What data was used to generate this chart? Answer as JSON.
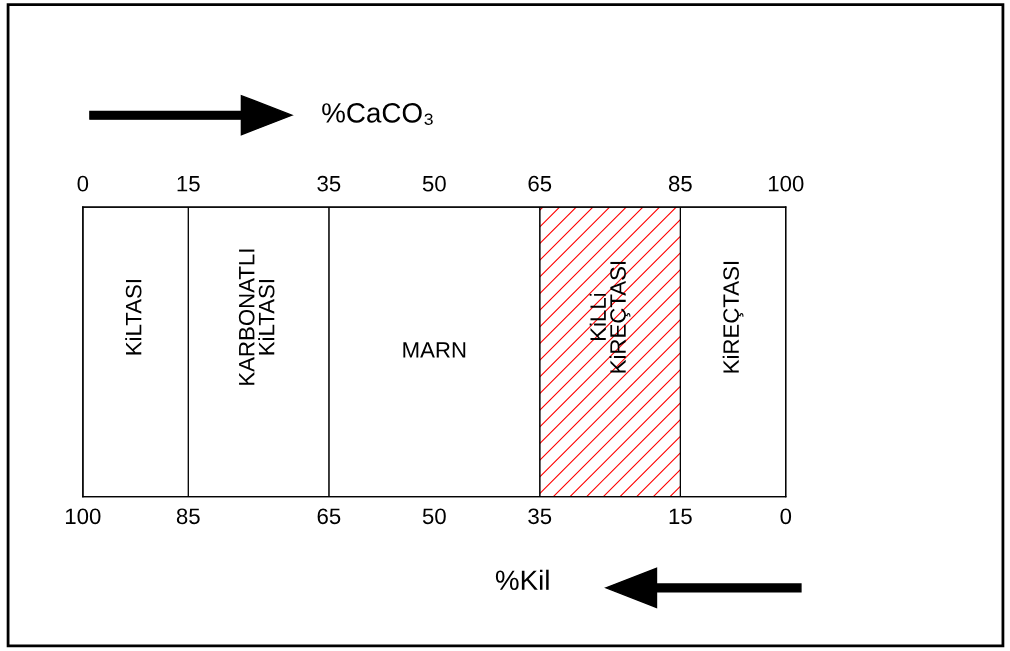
{
  "chart_data": {
    "type": "bar",
    "orientation": "horizontal",
    "stacked": true,
    "xlabel": "%Kil",
    "x2label": "%CaCO₃",
    "categories": [
      null
    ],
    "xlim": [
      100,
      0
    ],
    "xticks": [
      100,
      85,
      65,
      50,
      35,
      15,
      0
    ],
    "x2lim": [
      0,
      100
    ],
    "x2ticks": [
      0,
      15,
      35,
      50,
      65,
      85,
      100
    ],
    "series": [
      {
        "name": "KiREÇTASI",
        "color": "#ffffff",
        "values": [
          15
        ]
      },
      {
        "name": "KiLLi\nKiREÇTASI",
        "color": "#ff0000",
        "values": [
          20
        ]
      },
      {
        "name": "MARN",
        "color": "#ffffff",
        "values": [
          30
        ]
      },
      {
        "name": "KARBONATLI\nKiLTASI",
        "color": "#ffffff",
        "values": [
          20
        ]
      },
      {
        "name": "KiLTASI",
        "color": "#ffffff",
        "values": [
          15
        ]
      }
    ]
  }
}
